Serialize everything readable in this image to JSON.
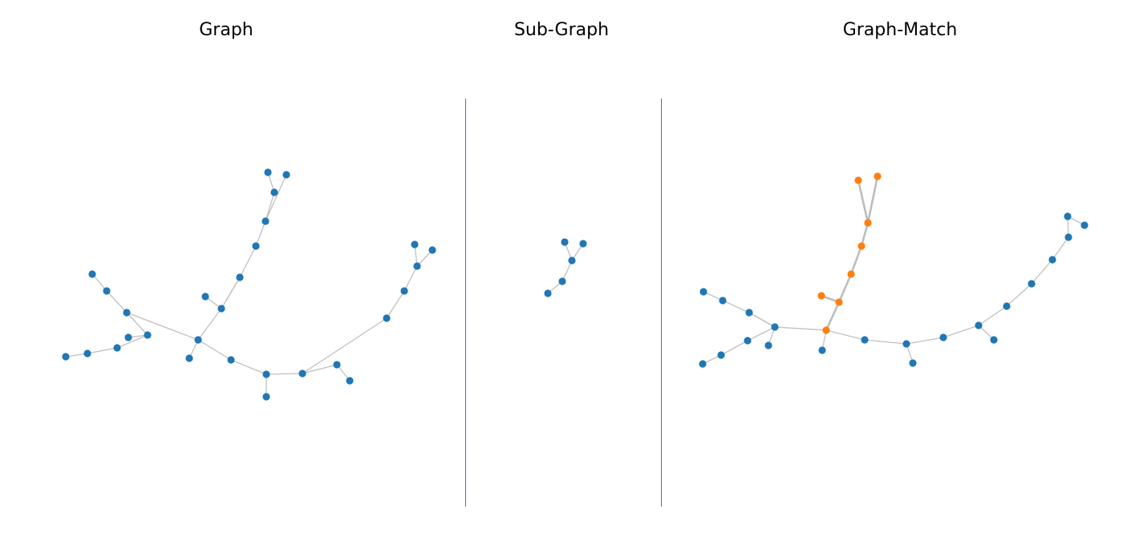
{
  "colors": {
    "node_default": "#1f77b4",
    "node_highlight": "#ff7f0e",
    "edge_default": "#c0c0c0",
    "edge_highlight": "#bdbdbd",
    "divider": "#4472c4",
    "title_text": "#000000"
  },
  "panels": [
    {
      "id": "graph",
      "title": "Graph",
      "nodes": [
        {
          "id": "g1"
        },
        {
          "id": "g2"
        },
        {
          "id": "g3"
        },
        {
          "id": "g4"
        },
        {
          "id": "g5"
        },
        {
          "id": "g6"
        },
        {
          "id": "g7"
        },
        {
          "id": "g8"
        },
        {
          "id": "g9"
        },
        {
          "id": "g10"
        },
        {
          "id": "g11"
        },
        {
          "id": "g12"
        },
        {
          "id": "g13"
        },
        {
          "id": "g14"
        },
        {
          "id": "g15"
        },
        {
          "id": "g16"
        },
        {
          "id": "g17"
        },
        {
          "id": "g18"
        },
        {
          "id": "g19"
        },
        {
          "id": "g20"
        },
        {
          "id": "g21"
        },
        {
          "id": "g22"
        },
        {
          "id": "g23"
        },
        {
          "id": "g24"
        },
        {
          "id": "g25"
        },
        {
          "id": "g26"
        },
        {
          "id": "g27"
        },
        {
          "id": "g28"
        },
        {
          "id": "g29"
        },
        {
          "id": "g30"
        }
      ],
      "edges": [
        [
          "g1",
          "g2"
        ],
        [
          "g2",
          "g3"
        ],
        [
          "g3",
          "g5"
        ],
        [
          "g4",
          "g5"
        ],
        [
          "g6",
          "g5"
        ],
        [
          "g7",
          "g8"
        ],
        [
          "g8",
          "g9"
        ],
        [
          "g9",
          "g6"
        ],
        [
          "g6",
          "g10"
        ],
        [
          "g10",
          "g11"
        ],
        [
          "g11",
          "g12"
        ],
        [
          "g12",
          "g13"
        ],
        [
          "g13",
          "g14"
        ],
        [
          "g14",
          "g15"
        ],
        [
          "g15",
          "g16"
        ],
        [
          "g14",
          "g17"
        ],
        [
          "g12",
          "g18"
        ],
        [
          "g18",
          "g19"
        ],
        [
          "g10",
          "g20"
        ],
        [
          "g10",
          "g21"
        ],
        [
          "g21",
          "g22"
        ],
        [
          "g22",
          "g23"
        ],
        [
          "g23",
          "g24"
        ],
        [
          "g24",
          "g30"
        ],
        [
          "g22",
          "g25"
        ],
        [
          "g23",
          "g26"
        ],
        [
          "g26",
          "g27"
        ],
        [
          "g27",
          "g28"
        ],
        [
          "g28",
          "g29"
        ]
      ]
    },
    {
      "id": "subgraph",
      "title": "Sub-Graph",
      "nodes": [
        {
          "id": "s1"
        },
        {
          "id": "s2"
        },
        {
          "id": "s3"
        },
        {
          "id": "s4"
        },
        {
          "id": "s5"
        }
      ],
      "edges": [
        [
          "s1",
          "s2"
        ],
        [
          "s2",
          "s3"
        ],
        [
          "s3",
          "s4"
        ],
        [
          "s3",
          "s5"
        ]
      ]
    },
    {
      "id": "graphmatch",
      "title": "Graph-Match",
      "nodes": [
        {
          "id": "m1"
        },
        {
          "id": "m2"
        },
        {
          "id": "m3"
        },
        {
          "id": "m4"
        },
        {
          "id": "m5"
        },
        {
          "id": "m6"
        },
        {
          "id": "m7"
        },
        {
          "id": "m8"
        },
        {
          "id": "m9"
        },
        {
          "id": "m10",
          "match": true
        },
        {
          "id": "m11"
        },
        {
          "id": "m12",
          "match": true
        },
        {
          "id": "m13",
          "match": true
        },
        {
          "id": "m14",
          "match": true
        },
        {
          "id": "m15",
          "match": true
        },
        {
          "id": "m16",
          "match": true
        },
        {
          "id": "m17",
          "match": true
        },
        {
          "id": "m18",
          "match": true
        },
        {
          "id": "m19"
        },
        {
          "id": "m20"
        },
        {
          "id": "m21"
        },
        {
          "id": "m22"
        },
        {
          "id": "m23"
        },
        {
          "id": "m24"
        },
        {
          "id": "m25"
        },
        {
          "id": "m26"
        },
        {
          "id": "m27"
        },
        {
          "id": "m28"
        },
        {
          "id": "m29"
        },
        {
          "id": "m30"
        }
      ],
      "edges": [
        [
          "m1",
          "m2"
        ],
        [
          "m2",
          "m3"
        ],
        [
          "m3",
          "m5"
        ],
        [
          "m4",
          "m5"
        ],
        [
          "m6",
          "m5"
        ],
        [
          "m7",
          "m8"
        ],
        [
          "m8",
          "m9"
        ],
        [
          "m9",
          "m5"
        ],
        [
          "m5",
          "m10"
        ],
        [
          "m10",
          "m11"
        ],
        {
          "from": "m10",
          "to": "m13",
          "match": true
        },
        {
          "from": "m13",
          "to": "m12",
          "match": true
        },
        {
          "from": "m13",
          "to": "m14",
          "match": true
        },
        {
          "from": "m14",
          "to": "m15",
          "match": true
        },
        {
          "from": "m15",
          "to": "m16",
          "match": true
        },
        {
          "from": "m16",
          "to": "m17",
          "match": true
        },
        {
          "from": "m16",
          "to": "m18",
          "match": true
        },
        [
          "m10",
          "m19"
        ],
        [
          "m19",
          "m20"
        ],
        [
          "m20",
          "m21"
        ],
        [
          "m20",
          "m22"
        ],
        [
          "m22",
          "m23"
        ],
        [
          "m23",
          "m24"
        ],
        [
          "m23",
          "m25"
        ],
        [
          "m25",
          "m26"
        ],
        [
          "m26",
          "m27"
        ],
        [
          "m27",
          "m28"
        ],
        [
          "m28",
          "m29"
        ],
        [
          "m29",
          "m30"
        ]
      ]
    }
  ]
}
